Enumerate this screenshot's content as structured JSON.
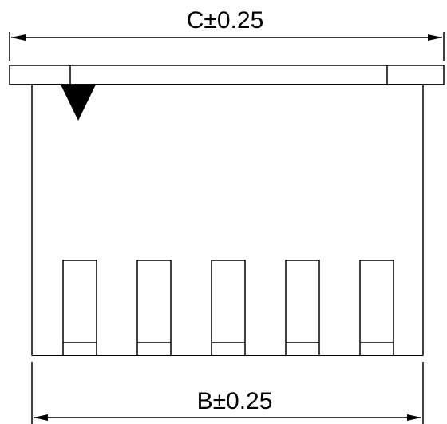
{
  "top_dimension": {
    "label": "C±0.25"
  },
  "bottom_dimension": {
    "label": "B±0.25"
  },
  "pins": [
    {
      "id": "pin-1"
    },
    {
      "id": "pin-2"
    },
    {
      "id": "pin-3"
    },
    {
      "id": "pin-4"
    },
    {
      "id": "pin-5"
    }
  ],
  "pin1_marker": {
    "shape": "triangle"
  },
  "colors": {
    "stroke": "#000000",
    "fill": "#ffffff"
  }
}
